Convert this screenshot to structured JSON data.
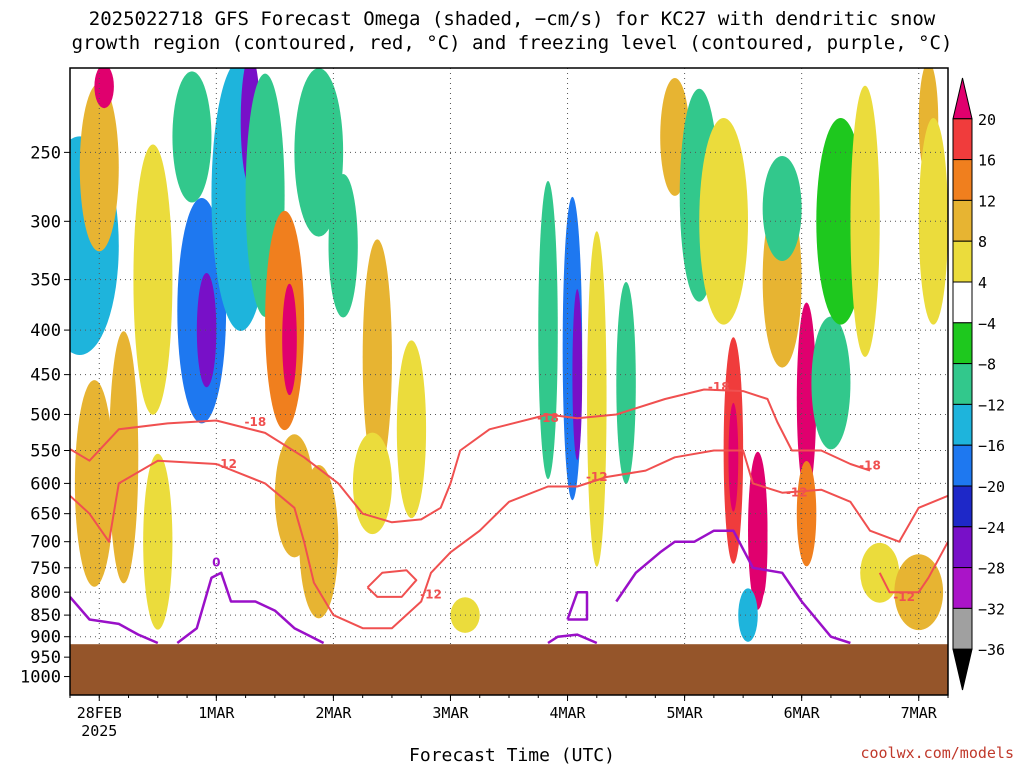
{
  "title": {
    "line1": "2025022718 GFS Forecast Omega (shaded, −cm/s) for KC27 with dendritic snow",
    "line2": "growth region (contoured, red, °C) and freezing level (contoured, purple, °C)"
  },
  "watermark": "coolwx.com/models",
  "chart_data": {
    "type": "heatmap",
    "xlabel": "Forecast Time (UTC)",
    "ylabel": "",
    "x_ticks": [
      {
        "label": "28FEB",
        "sub": "2025",
        "t": 6
      },
      {
        "label": "1MAR",
        "sub": "",
        "t": 30
      },
      {
        "label": "2MAR",
        "sub": "",
        "t": 54
      },
      {
        "label": "3MAR",
        "sub": "",
        "t": 78
      },
      {
        "label": "4MAR",
        "sub": "",
        "t": 102
      },
      {
        "label": "5MAR",
        "sub": "",
        "t": 126
      },
      {
        "label": "6MAR",
        "sub": "",
        "t": 150
      },
      {
        "label": "7MAR",
        "sub": "",
        "t": 174
      }
    ],
    "xlim": [
      0,
      180
    ],
    "y_ticks": [
      250,
      300,
      350,
      400,
      450,
      500,
      550,
      600,
      650,
      700,
      750,
      800,
      850,
      900,
      950,
      1000
    ],
    "ylim": [
      1050,
      200
    ],
    "y_scale": "log",
    "surface_pressure": 918,
    "colorbar": {
      "labels": [
        "20",
        "16",
        "12",
        "8",
        "4",
        "−4",
        "−8",
        "−12",
        "−16",
        "−20",
        "−24",
        "−28",
        "−32",
        "−36"
      ],
      "colors": [
        "#e0006e",
        "#f03c3c",
        "#f07f1e",
        "#e7b432",
        "#ebdc3c",
        "#ffffff",
        "#1ec81e",
        "#32c88c",
        "#1eb4dc",
        "#1e78f0",
        "#1e28c8",
        "#7810c8",
        "#aa14c8",
        "#a0a0a0",
        "#000000"
      ]
    },
    "blobs": [
      {
        "t": 2,
        "p": 320,
        "dt": 8,
        "dp": 90,
        "v": -12
      },
      {
        "t": 6,
        "p": 260,
        "dt": 4,
        "dp": 60,
        "v": 10
      },
      {
        "t": 7,
        "p": 210,
        "dt": 2,
        "dp": 20,
        "v": 20
      },
      {
        "t": 5,
        "p": 600,
        "dt": 4,
        "dp": 160,
        "v": 8
      },
      {
        "t": 11,
        "p": 560,
        "dt": 3,
        "dp": 180,
        "v": 10
      },
      {
        "t": 17,
        "p": 350,
        "dt": 4,
        "dp": 120,
        "v": 6
      },
      {
        "t": 18,
        "p": 700,
        "dt": 3,
        "dp": 160,
        "v": 6
      },
      {
        "t": 27,
        "p": 380,
        "dt": 5,
        "dp": 110,
        "v": -16
      },
      {
        "t": 28,
        "p": 400,
        "dt": 2,
        "dp": 60,
        "v": -26
      },
      {
        "t": 25,
        "p": 240,
        "dt": 4,
        "dp": 50,
        "v": -9
      },
      {
        "t": 35,
        "p": 280,
        "dt": 6,
        "dp": 140,
        "v": -12
      },
      {
        "t": 37,
        "p": 230,
        "dt": 2,
        "dp": 60,
        "v": -24
      },
      {
        "t": 40,
        "p": 280,
        "dt": 4,
        "dp": 110,
        "v": -8
      },
      {
        "t": 44,
        "p": 390,
        "dt": 4,
        "dp": 110,
        "v": 14
      },
      {
        "t": 45,
        "p": 410,
        "dt": 1.5,
        "dp": 60,
        "v": 20
      },
      {
        "t": 46,
        "p": 620,
        "dt": 4,
        "dp": 100,
        "v": 8
      },
      {
        "t": 51,
        "p": 250,
        "dt": 5,
        "dp": 70,
        "v": -8
      },
      {
        "t": 51,
        "p": 700,
        "dt": 4,
        "dp": 140,
        "v": 8
      },
      {
        "t": 56,
        "p": 320,
        "dt": 3,
        "dp": 60,
        "v": -8
      },
      {
        "t": 63,
        "p": 430,
        "dt": 3,
        "dp": 130,
        "v": 9
      },
      {
        "t": 62,
        "p": 600,
        "dt": 4,
        "dp": 80,
        "v": 6
      },
      {
        "t": 70,
        "p": 520,
        "dt": 3,
        "dp": 120,
        "v": 4
      },
      {
        "t": 81,
        "p": 850,
        "dt": 3,
        "dp": 40,
        "v": 5
      },
      {
        "t": 98,
        "p": 400,
        "dt": 2,
        "dp": 150,
        "v": -9
      },
      {
        "t": 103,
        "p": 420,
        "dt": 2,
        "dp": 160,
        "v": -18
      },
      {
        "t": 104,
        "p": 450,
        "dt": 1,
        "dp": 100,
        "v": -24
      },
      {
        "t": 108,
        "p": 480,
        "dt": 2,
        "dp": 200,
        "v": 5
      },
      {
        "t": 114,
        "p": 460,
        "dt": 2,
        "dp": 120,
        "v": -8
      },
      {
        "t": 124,
        "p": 240,
        "dt": 3,
        "dp": 40,
        "v": 8
      },
      {
        "t": 129,
        "p": 280,
        "dt": 4,
        "dp": 80,
        "v": -8
      },
      {
        "t": 134,
        "p": 300,
        "dt": 5,
        "dp": 80,
        "v": 6
      },
      {
        "t": 136,
        "p": 550,
        "dt": 2,
        "dp": 160,
        "v": 16
      },
      {
        "t": 136,
        "p": 560,
        "dt": 1,
        "dp": 80,
        "v": 22
      },
      {
        "t": 141,
        "p": 680,
        "dt": 2,
        "dp": 140,
        "v": 20
      },
      {
        "t": 142,
        "p": 700,
        "dt": 1,
        "dp": 100,
        "v": 22
      },
      {
        "t": 139,
        "p": 850,
        "dt": 2,
        "dp": 60,
        "v": -14
      },
      {
        "t": 146,
        "p": 350,
        "dt": 4,
        "dp": 80,
        "v": 8
      },
      {
        "t": 146,
        "p": 290,
        "dt": 4,
        "dp": 40,
        "v": -8
      },
      {
        "t": 151,
        "p": 480,
        "dt": 2,
        "dp": 120,
        "v": 20
      },
      {
        "t": 151,
        "p": 650,
        "dt": 2,
        "dp": 90,
        "v": 14
      },
      {
        "t": 156,
        "p": 460,
        "dt": 4,
        "dp": 80,
        "v": -10
      },
      {
        "t": 158,
        "p": 300,
        "dt": 5,
        "dp": 80,
        "v": -7
      },
      {
        "t": 163,
        "p": 300,
        "dt": 3,
        "dp": 120,
        "v": 6
      },
      {
        "t": 166,
        "p": 760,
        "dt": 4,
        "dp": 60,
        "v": 6
      },
      {
        "t": 174,
        "p": 800,
        "dt": 5,
        "dp": 80,
        "v": 8
      },
      {
        "t": 176,
        "p": 230,
        "dt": 2,
        "dp": 50,
        "v": 10
      },
      {
        "t": 177,
        "p": 300,
        "dt": 3,
        "dp": 80,
        "v": 5
      }
    ],
    "contours": [
      {
        "level": -18,
        "color": "#f05050",
        "points": [
          [
            0,
            548
          ],
          [
            4,
            565
          ],
          [
            10,
            520
          ],
          [
            20,
            512
          ],
          [
            30,
            508
          ],
          [
            40,
            525
          ],
          [
            48,
            560
          ],
          [
            55,
            600
          ],
          [
            60,
            650
          ],
          [
            66,
            665
          ],
          [
            72,
            660
          ],
          [
            76,
            640
          ],
          [
            78,
            600
          ],
          [
            80,
            550
          ],
          [
            86,
            520
          ],
          [
            98,
            500
          ],
          [
            104,
            505
          ],
          [
            112,
            500
          ],
          [
            122,
            480
          ],
          [
            130,
            468
          ],
          [
            138,
            470
          ],
          [
            143,
            480
          ],
          [
            145,
            510
          ],
          [
            148,
            550
          ],
          [
            154,
            550
          ],
          [
            160,
            570
          ],
          [
            164,
            580
          ]
        ]
      },
      {
        "level": -12,
        "color": "#f05050",
        "points": [
          [
            0,
            620
          ],
          [
            4,
            650
          ],
          [
            8,
            700
          ],
          [
            10,
            600
          ],
          [
            18,
            565
          ],
          [
            30,
            570
          ],
          [
            40,
            600
          ],
          [
            46,
            640
          ],
          [
            48,
            700
          ],
          [
            50,
            780
          ],
          [
            54,
            850
          ],
          [
            60,
            880
          ],
          [
            66,
            880
          ],
          [
            72,
            820
          ],
          [
            74,
            760
          ],
          [
            78,
            720
          ],
          [
            84,
            680
          ],
          [
            90,
            630
          ],
          [
            98,
            605
          ],
          [
            104,
            605
          ],
          [
            110,
            590
          ],
          [
            118,
            580
          ],
          [
            124,
            560
          ],
          [
            132,
            550
          ],
          [
            138,
            550
          ],
          [
            140,
            600
          ],
          [
            146,
            615
          ],
          [
            154,
            610
          ],
          [
            160,
            630
          ],
          [
            164,
            680
          ],
          [
            170,
            700
          ],
          [
            174,
            640
          ],
          [
            180,
            620
          ]
        ]
      },
      {
        "level": -12,
        "color": "#f05050",
        "points": [
          [
            61,
            790
          ],
          [
            64,
            760
          ],
          [
            69,
            755
          ],
          [
            71,
            775
          ],
          [
            68,
            810
          ],
          [
            63,
            810
          ],
          [
            61,
            790
          ]
        ]
      },
      {
        "level": -12,
        "color": "#f05050",
        "points": [
          [
            166,
            760
          ],
          [
            168,
            800
          ],
          [
            174,
            800
          ],
          [
            176,
            770
          ],
          [
            180,
            700
          ]
        ]
      },
      {
        "level": 0,
        "color": "#9a10c8",
        "points": [
          [
            0,
            810
          ],
          [
            4,
            860
          ],
          [
            10,
            870
          ],
          [
            14,
            895
          ],
          [
            18,
            915
          ]
        ]
      },
      {
        "level": 0,
        "color": "#9a10c8",
        "points": [
          [
            22,
            915
          ],
          [
            26,
            880
          ],
          [
            29,
            770
          ],
          [
            31,
            760
          ],
          [
            33,
            820
          ],
          [
            38,
            820
          ],
          [
            42,
            840
          ],
          [
            46,
            880
          ],
          [
            52,
            915
          ]
        ]
      },
      {
        "level": 0,
        "color": "#9a10c8",
        "points": [
          [
            98,
            915
          ],
          [
            100,
            900
          ],
          [
            104,
            895
          ],
          [
            108,
            915
          ]
        ]
      },
      {
        "level": 0,
        "color": "#9a10c8",
        "points": [
          [
            102,
            860
          ],
          [
            104,
            800
          ],
          [
            106,
            800
          ],
          [
            106,
            860
          ],
          [
            102,
            860
          ]
        ]
      },
      {
        "level": 0,
        "color": "#9a10c8",
        "points": [
          [
            112,
            820
          ],
          [
            116,
            760
          ],
          [
            121,
            720
          ],
          [
            124,
            700
          ],
          [
            128,
            700
          ],
          [
            132,
            680
          ],
          [
            136,
            680
          ],
          [
            140,
            750
          ],
          [
            146,
            760
          ],
          [
            150,
            820
          ],
          [
            156,
            900
          ],
          [
            160,
            915
          ]
        ]
      }
    ],
    "contour_labels": [
      {
        "text": "-18",
        "t": 38,
        "p": 510
      },
      {
        "text": "-12",
        "t": 32,
        "p": 570
      },
      {
        "text": "-18",
        "t": 98,
        "p": 505
      },
      {
        "text": "-12",
        "t": 108,
        "p": 590
      },
      {
        "text": "-12",
        "t": 74,
        "p": 805
      },
      {
        "text": "-18",
        "t": 133,
        "p": 465
      },
      {
        "text": "-12",
        "t": 149,
        "p": 615
      },
      {
        "text": "-18",
        "t": 164,
        "p": 572
      },
      {
        "text": "-12",
        "t": 171,
        "p": 810
      },
      {
        "text": "0",
        "t": 30,
        "p": 740
      }
    ]
  }
}
